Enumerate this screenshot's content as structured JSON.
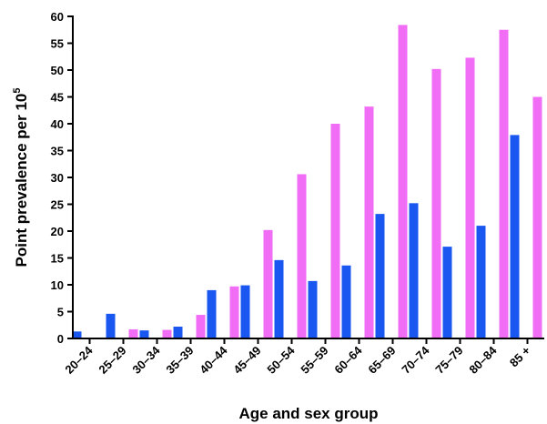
{
  "chart_data": {
    "type": "bar",
    "title": "",
    "xlabel": "Age and sex group",
    "ylabel": "Point prevalence per 10",
    "ylabel_superscript": "5",
    "ylim": [
      0,
      60
    ],
    "yticks": [
      0,
      5,
      10,
      15,
      20,
      25,
      30,
      35,
      40,
      45,
      50,
      55,
      60
    ],
    "categories": [
      "20–24",
      "25–29",
      "30–34",
      "35–39",
      "40–44",
      "45–49",
      "50–54",
      "55–59",
      "60–64",
      "65–69",
      "70–74",
      "75–79",
      "80–84",
      "85 +"
    ],
    "series": [
      {
        "color": "#1a56f0",
        "values": [
          1.3,
          4.6,
          1.5,
          2.2,
          9.0,
          9.9,
          14.6,
          10.7,
          13.6,
          23.2,
          25.2,
          17.1,
          21.0,
          37.9
        ]
      },
      {
        "color": "#f26df5",
        "values": [
          0,
          1.7,
          1.6,
          4.4,
          9.7,
          20.2,
          30.6,
          40.0,
          43.2,
          58.4,
          50.2,
          52.3,
          57.5,
          45.0
        ]
      }
    ]
  }
}
